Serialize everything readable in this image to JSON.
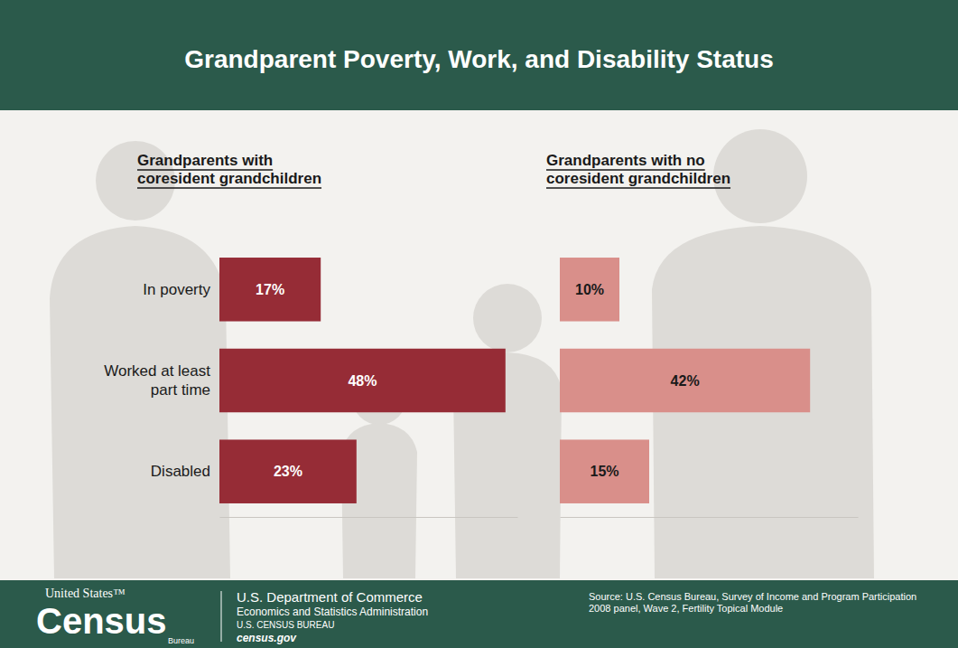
{
  "title": "Grandparent Poverty, Work, and Disability Status",
  "chart_data": [
    {
      "type": "bar",
      "orientation": "horizontal",
      "title": "Grandparents with coresident grandchildren",
      "categories": [
        "In poverty",
        "Worked at least part time",
        "Disabled"
      ],
      "values": [
        17,
        48,
        23
      ],
      "value_labels": [
        "17%",
        "48%",
        "23%"
      ],
      "color": "#962c36",
      "data_labels": true,
      "tick_labels": "y",
      "xlim": [
        0,
        50
      ],
      "xticks": []
    },
    {
      "type": "bar",
      "orientation": "horizontal",
      "title": "Grandparents with no coresident grandchildren",
      "categories": [
        null,
        null,
        null
      ],
      "values": [
        10,
        42,
        15
      ],
      "value_labels": [
        "10%",
        "42%",
        "15%"
      ],
      "color": "#d98f8a",
      "data_labels": true,
      "tick_labels": false,
      "xlim": [
        0,
        50
      ],
      "xticks": []
    }
  ],
  "footer": {
    "logo": [
      "United States™",
      "Census",
      "Bureau"
    ],
    "agency": [
      "U.S. Department of Commerce",
      "Economics and Statistics Administration",
      "U.S. CENSUS BUREAU",
      "census.gov"
    ],
    "source": "Source: U.S. Census Bureau, Survey of Income and Program Participation 2008 panel, Wave 2, Fertility Topical Module"
  }
}
